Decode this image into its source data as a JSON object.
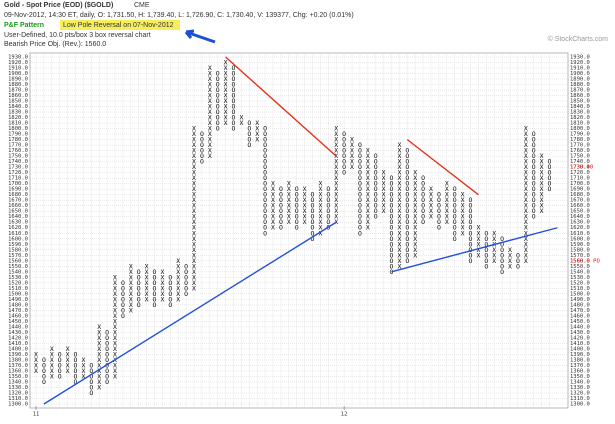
{
  "chart_data": {
    "type": "point-and-figure",
    "title": "Gold - Spot Price (EOD) ($GOLD)",
    "exchange": "CME",
    "quote_line": "09-Nov-2012, 14:30 ET, daily, O: 1,731.50, H: 1,739.40, L: 1,726.90, C: 1,730.40, V: 139377, Chg: +0.20 (0.01%)",
    "pattern_title": "P&F Pattern",
    "pattern": "Low Pole Reversal on 07-Nov-2012",
    "settings_line": "User-Defined, 10.0 pts/box 3 box reversal chart",
    "objective_line": "Bearish Price Obj. (Rev.): 1560.0",
    "watermark": "© StockCharts.com",
    "x_color": "#111",
    "o_color": "#111",
    "ylim": [
      1300,
      1930
    ],
    "yticks": [
      {
        "value": 1300,
        "label": "1300.0"
      },
      {
        "value": 1310,
        "label": "1310.0"
      },
      {
        "value": 1320,
        "label": "1320.0"
      },
      {
        "value": 1330,
        "label": "1330.0"
      },
      {
        "value": 1340,
        "label": "1340.0"
      },
      {
        "value": 1350,
        "label": "1350.0"
      },
      {
        "value": 1360,
        "label": "1360.0"
      },
      {
        "value": 1370,
        "label": "1370.0"
      },
      {
        "value": 1380,
        "label": "1380.0"
      },
      {
        "value": 1390,
        "label": "1390.0"
      },
      {
        "value": 1400,
        "label": "1400.0"
      },
      {
        "value": 1410,
        "label": "1410.0"
      },
      {
        "value": 1420,
        "label": "1420.0"
      },
      {
        "value": 1430,
        "label": "1430.0"
      },
      {
        "value": 1440,
        "label": "1440.0"
      },
      {
        "value": 1450,
        "label": "1450.0"
      },
      {
        "value": 1460,
        "label": "1460.0"
      },
      {
        "value": 1470,
        "label": "1470.0"
      },
      {
        "value": 1480,
        "label": "1480.0"
      },
      {
        "value": 1490,
        "label": "1490.0"
      },
      {
        "value": 1500,
        "label": "1500.0"
      },
      {
        "value": 1510,
        "label": "1510.0"
      },
      {
        "value": 1520,
        "label": "1520.0"
      },
      {
        "value": 1530,
        "label": "1530.0"
      },
      {
        "value": 1540,
        "label": "1540.0"
      },
      {
        "value": 1550,
        "label": "1550.0"
      },
      {
        "value": 1560,
        "label": "1560.0"
      },
      {
        "value": 1570,
        "label": "1570.0"
      },
      {
        "value": 1580,
        "label": "1580.0"
      },
      {
        "value": 1590,
        "label": "1590.0"
      },
      {
        "value": 1600,
        "label": "1600.0"
      },
      {
        "value": 1610,
        "label": "1610.0"
      },
      {
        "value": 1620,
        "label": "1620.0"
      },
      {
        "value": 1630,
        "label": "1630.0"
      },
      {
        "value": 1640,
        "label": "1640.0"
      },
      {
        "value": 1650,
        "label": "1650.0"
      },
      {
        "value": 1660,
        "label": "1660.0"
      },
      {
        "value": 1670,
        "label": "1670.0"
      },
      {
        "value": 1680,
        "label": "1680.0"
      },
      {
        "value": 1690,
        "label": "1690.0"
      },
      {
        "value": 1700,
        "label": "1700.0"
      },
      {
        "value": 1710,
        "label": "1710.0"
      },
      {
        "value": 1720,
        "label": "1720.0"
      },
      {
        "value": 1730,
        "label": "1730.0"
      },
      {
        "value": 1740,
        "label": "1740.0"
      },
      {
        "value": 1750,
        "label": "1750.0"
      },
      {
        "value": 1760,
        "label": "1760.0"
      },
      {
        "value": 1770,
        "label": "1770.0"
      },
      {
        "value": 1780,
        "label": "1780.0"
      },
      {
        "value": 1790,
        "label": "1790.0"
      },
      {
        "value": 1800,
        "label": "1800.0"
      },
      {
        "value": 1810,
        "label": "1810.0"
      },
      {
        "value": 1820,
        "label": "1820.0"
      },
      {
        "value": 1830,
        "label": "1830.0"
      },
      {
        "value": 1840,
        "label": "1840.0"
      },
      {
        "value": 1850,
        "label": "1850.0"
      },
      {
        "value": 1860,
        "label": "1860.0"
      },
      {
        "value": 1870,
        "label": "1870.0"
      },
      {
        "value": 1880,
        "label": "1880.0"
      },
      {
        "value": 1890,
        "label": "1890.0"
      },
      {
        "value": 1900,
        "label": "1900.0"
      },
      {
        "value": 1910,
        "label": "1910.0"
      },
      {
        "value": 1920,
        "label": "1920.0"
      },
      {
        "value": 1930,
        "label": "1930.0"
      }
    ],
    "grid": true,
    "columns": [
      {
        "kind": "X",
        "low": 1360,
        "high": 1390,
        "month_label": "11"
      },
      {
        "kind": "O",
        "low": 1340,
        "high": 1380
      },
      {
        "kind": "X",
        "low": 1350,
        "high": 1400
      },
      {
        "kind": "O",
        "low": 1350,
        "high": 1390
      },
      {
        "kind": "X",
        "low": 1360,
        "high": 1400
      },
      {
        "kind": "O",
        "low": 1340,
        "high": 1390
      },
      {
        "kind": "X",
        "low": 1350,
        "high": 1380
      },
      {
        "kind": "O",
        "low": 1320,
        "high": 1370
      },
      {
        "kind": "X",
        "low": 1330,
        "high": 1440
      },
      {
        "kind": "O",
        "low": 1340,
        "high": 1430
      },
      {
        "kind": "X",
        "low": 1350,
        "high": 1530
      },
      {
        "kind": "O",
        "low": 1460,
        "high": 1520
      },
      {
        "kind": "X",
        "low": 1470,
        "high": 1550
      },
      {
        "kind": "O",
        "low": 1480,
        "high": 1540
      },
      {
        "kind": "X",
        "low": 1490,
        "high": 1550
      },
      {
        "kind": "O",
        "low": 1480,
        "high": 1540
      },
      {
        "kind": "X",
        "low": 1490,
        "high": 1540
      },
      {
        "kind": "O",
        "low": 1480,
        "high": 1530
      },
      {
        "kind": "X",
        "low": 1490,
        "high": 1560
      },
      {
        "kind": "O",
        "low": 1500,
        "high": 1550
      },
      {
        "kind": "X",
        "low": 1510,
        "high": 1800
      },
      {
        "kind": "O",
        "low": 1740,
        "high": 1790
      },
      {
        "kind": "X",
        "low": 1750,
        "high": 1910
      },
      {
        "kind": "O",
        "low": 1800,
        "high": 1900
      },
      {
        "kind": "X",
        "low": 1810,
        "high": 1920
      },
      {
        "kind": "O",
        "low": 1800,
        "high": 1910
      },
      {
        "kind": "X",
        "low": 1810,
        "high": 1820
      },
      {
        "kind": "O",
        "low": 1770,
        "high": 1810
      },
      {
        "kind": "X",
        "low": 1780,
        "high": 1810
      },
      {
        "kind": "O",
        "low": 1610,
        "high": 1800
      },
      {
        "kind": "X",
        "low": 1620,
        "high": 1700
      },
      {
        "kind": "O",
        "low": 1620,
        "high": 1690
      },
      {
        "kind": "X",
        "low": 1630,
        "high": 1700
      },
      {
        "kind": "O",
        "low": 1620,
        "high": 1690
      },
      {
        "kind": "X",
        "low": 1630,
        "high": 1690
      },
      {
        "kind": "O",
        "low": 1600,
        "high": 1680
      },
      {
        "kind": "X",
        "low": 1610,
        "high": 1700
      },
      {
        "kind": "O",
        "low": 1620,
        "high": 1690
      },
      {
        "kind": "X",
        "low": 1630,
        "high": 1800
      },
      {
        "kind": "O",
        "low": 1720,
        "high": 1790,
        "month_label": "12"
      },
      {
        "kind": "X",
        "low": 1730,
        "high": 1780
      },
      {
        "kind": "O",
        "low": 1610,
        "high": 1770
      },
      {
        "kind": "X",
        "low": 1620,
        "high": 1760
      },
      {
        "kind": "O",
        "low": 1640,
        "high": 1750
      },
      {
        "kind": "X",
        "low": 1650,
        "high": 1720
      },
      {
        "kind": "O",
        "low": 1540,
        "high": 1710
      },
      {
        "kind": "X",
        "low": 1550,
        "high": 1770
      },
      {
        "kind": "O",
        "low": 1560,
        "high": 1760
      },
      {
        "kind": "X",
        "low": 1570,
        "high": 1720
      },
      {
        "kind": "O",
        "low": 1630,
        "high": 1710
      },
      {
        "kind": "X",
        "low": 1640,
        "high": 1690
      },
      {
        "kind": "O",
        "low": 1620,
        "high": 1680
      },
      {
        "kind": "X",
        "low": 1630,
        "high": 1700
      },
      {
        "kind": "O",
        "low": 1600,
        "high": 1690
      },
      {
        "kind": "X",
        "low": 1610,
        "high": 1680
      },
      {
        "kind": "O",
        "low": 1560,
        "high": 1670
      },
      {
        "kind": "X",
        "low": 1570,
        "high": 1620
      },
      {
        "kind": "O",
        "low": 1550,
        "high": 1610
      },
      {
        "kind": "X",
        "low": 1560,
        "high": 1610
      },
      {
        "kind": "O",
        "low": 1540,
        "high": 1600
      },
      {
        "kind": "X",
        "low": 1550,
        "high": 1580
      },
      {
        "kind": "O",
        "low": 1550,
        "high": 1570
      },
      {
        "kind": "X",
        "low": 1560,
        "high": 1800
      },
      {
        "kind": "O",
        "low": 1640,
        "high": 1790
      },
      {
        "kind": "X",
        "low": 1650,
        "high": 1750
      },
      {
        "kind": "O",
        "low": 1690,
        "high": 1740
      }
    ],
    "trendlines": [
      {
        "color": "#e8301c",
        "from": {
          "column": 24,
          "price": 1930
        },
        "to": {
          "column": 38,
          "price": 1750
        }
      },
      {
        "color": "#e8301c",
        "from": {
          "column": 47,
          "price": 1780
        },
        "to": {
          "column": 56,
          "price": 1680
        }
      },
      {
        "color": "#2050e0",
        "from": {
          "column": 1,
          "price": 1300
        },
        "to": {
          "column": 38,
          "price": 1630
        }
      },
      {
        "color": "#2050e0",
        "from": {
          "column": 45,
          "price": 1540
        },
        "to": {
          "column": 66,
          "price": 1620
        }
      }
    ],
    "markers": [
      {
        "value": 1560,
        "label": "1560.0 PO",
        "color": "#e01010"
      },
      {
        "value": 1730.4,
        "label": "1730.40",
        "color": "#e01010"
      }
    ]
  }
}
